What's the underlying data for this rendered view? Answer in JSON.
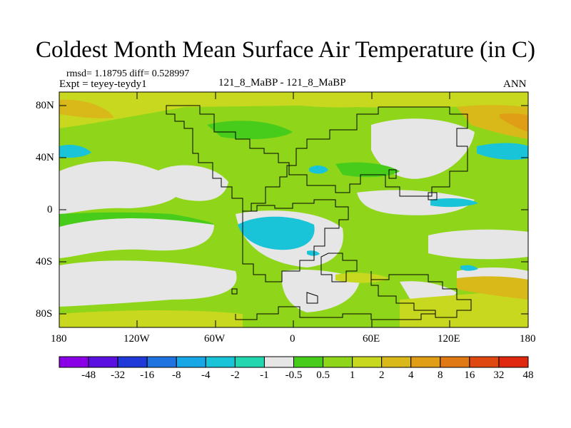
{
  "title": "Coldest Month Mean Surface Air Temperature (in C)",
  "stats": "rmsd= 1.18795 diff= 0.528997",
  "expt": "Expt = teyey-teydy1",
  "comparison": "121_8_MaBP - 121_8_MaBP",
  "period": "ANN",
  "lat_ticks": [
    "80N",
    "40N",
    "0",
    "40S",
    "80S"
  ],
  "lon_ticks": [
    "180",
    "120W",
    "60W",
    "0",
    "60E",
    "120E",
    "180"
  ],
  "colorbar": {
    "colors": [
      "#8a00e6",
      "#5a10e0",
      "#1f3ad8",
      "#1f73e0",
      "#17a6e6",
      "#19c4d8",
      "#22d6b0",
      "#e6e6e6",
      "#48cc1c",
      "#8fd61a",
      "#c8d81e",
      "#d9b81a",
      "#e09e16",
      "#e07814",
      "#e04812",
      "#e02810"
    ],
    "labels": [
      "-48",
      "-32",
      "-16",
      "-8",
      "-4",
      "-2",
      "-1",
      "-0.5",
      "0.5",
      "1",
      "2",
      "4",
      "8",
      "16",
      "32",
      "48"
    ]
  },
  "chart_data": {
    "type": "heatmap",
    "title": "Coldest Month Mean Surface Air Temperature (in C)",
    "x_range": [
      -180,
      180
    ],
    "y_range": [
      -90,
      90
    ],
    "levels": [
      -48,
      -32,
      -16,
      -8,
      -4,
      -2,
      -1,
      -0.5,
      0.5,
      1,
      2,
      4,
      8,
      16,
      32,
      48
    ],
    "units": "C"
  }
}
